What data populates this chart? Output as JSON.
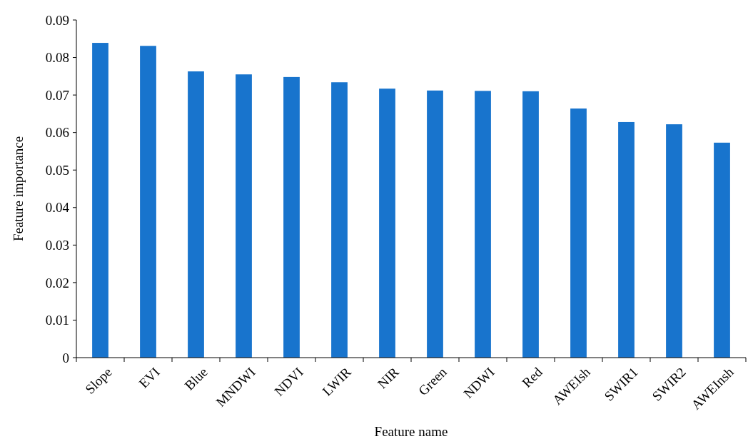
{
  "chart_data": {
    "type": "bar",
    "xlabel": "Feature name",
    "ylabel": "Feature importance",
    "categories": [
      "Slope",
      "EVI",
      "Blue",
      "MNDWI",
      "NDVI",
      "LWIR",
      "NIR",
      "Green",
      "NDWI",
      "Red",
      "AWEIsh",
      "SWIR1",
      "SWIR2",
      "AWEInsh"
    ],
    "values": [
      0.0839,
      0.0831,
      0.0763,
      0.0755,
      0.0748,
      0.0734,
      0.0717,
      0.0712,
      0.0711,
      0.071,
      0.0664,
      0.0628,
      0.0622,
      0.0573
    ],
    "color": "#1874cd",
    "ylim": [
      0,
      0.09
    ],
    "yticks": [
      {
        "value": 0,
        "label": "0"
      },
      {
        "value": 0.01,
        "label": "0.01"
      },
      {
        "value": 0.02,
        "label": "0.02"
      },
      {
        "value": 0.03,
        "label": "0.03"
      },
      {
        "value": 0.04,
        "label": "0.04"
      },
      {
        "value": 0.05,
        "label": "0.05"
      },
      {
        "value": 0.06,
        "label": "0.06"
      },
      {
        "value": 0.07,
        "label": "0.07"
      },
      {
        "value": 0.08,
        "label": "0.08"
      },
      {
        "value": 0.09,
        "label": "0.09"
      }
    ],
    "grid": false
  }
}
